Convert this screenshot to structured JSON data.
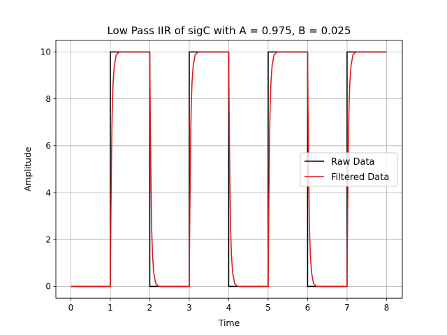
{
  "chart_data": {
    "type": "line",
    "title": "Low Pass IIR of sigC with A = 0.975, B = 0.025",
    "xlabel": "Time",
    "ylabel": "Amplitude",
    "xlim": [
      -0.38,
      8.4
    ],
    "ylim": [
      -0.5,
      10.5
    ],
    "xticks": [
      "0",
      "1",
      "2",
      "3",
      "4",
      "5",
      "6",
      "7",
      "8"
    ],
    "yticks": [
      "0",
      "2",
      "4",
      "6",
      "8",
      "10"
    ],
    "grid": true,
    "legend_position": "center-right",
    "filter_coefficients": {
      "A": 0.975,
      "B": 0.025
    },
    "series": [
      {
        "name": "Raw Data",
        "color": "#000000",
        "points": [
          [
            0,
            0
          ],
          [
            1,
            0
          ],
          [
            1,
            10
          ],
          [
            2,
            10
          ],
          [
            2,
            0
          ],
          [
            3,
            0
          ],
          [
            3,
            10
          ],
          [
            4,
            10
          ],
          [
            4,
            0
          ],
          [
            5,
            0
          ],
          [
            5,
            10
          ],
          [
            6,
            10
          ],
          [
            6,
            0
          ],
          [
            7,
            0
          ],
          [
            7,
            10
          ],
          [
            8,
            10
          ]
        ]
      },
      {
        "name": "Filtered Data",
        "color": "#e0191b",
        "points": [
          [
            0,
            0
          ],
          [
            1,
            0
          ],
          [
            1.0,
            0.25
          ],
          [
            1.01,
            2.21
          ],
          [
            1.02,
            3.93
          ],
          [
            1.03,
            5.43
          ],
          [
            1.04,
            6.74
          ],
          [
            1.05,
            7.67
          ],
          [
            1.07,
            8.68
          ],
          [
            1.1,
            9.41
          ],
          [
            1.15,
            9.88
          ],
          [
            1.22,
            9.99
          ],
          [
            1.3,
            10
          ],
          [
            2,
            10
          ],
          [
            2.0,
            9.75
          ],
          [
            2.01,
            7.79
          ],
          [
            2.02,
            6.07
          ],
          [
            2.03,
            4.57
          ],
          [
            2.04,
            3.26
          ],
          [
            2.05,
            2.33
          ],
          [
            2.07,
            1.32
          ],
          [
            2.1,
            0.59
          ],
          [
            2.15,
            0.12
          ],
          [
            2.22,
            0.01
          ],
          [
            2.3,
            0
          ],
          [
            3,
            0
          ],
          [
            3.0,
            0.25
          ],
          [
            3.01,
            2.21
          ],
          [
            3.02,
            3.93
          ],
          [
            3.03,
            5.43
          ],
          [
            3.04,
            6.74
          ],
          [
            3.05,
            7.67
          ],
          [
            3.07,
            8.68
          ],
          [
            3.1,
            9.41
          ],
          [
            3.15,
            9.88
          ],
          [
            3.22,
            9.99
          ],
          [
            3.3,
            10
          ],
          [
            4,
            10
          ],
          [
            4.0,
            9.75
          ],
          [
            4.01,
            7.79
          ],
          [
            4.02,
            6.07
          ],
          [
            4.03,
            4.57
          ],
          [
            4.04,
            3.26
          ],
          [
            4.05,
            2.33
          ],
          [
            4.07,
            1.32
          ],
          [
            4.1,
            0.59
          ],
          [
            4.15,
            0.12
          ],
          [
            4.22,
            0.01
          ],
          [
            4.3,
            0
          ],
          [
            5,
            0
          ],
          [
            5.0,
            0.25
          ],
          [
            5.01,
            2.21
          ],
          [
            5.02,
            3.93
          ],
          [
            5.03,
            5.43
          ],
          [
            5.04,
            6.74
          ],
          [
            5.05,
            7.67
          ],
          [
            5.07,
            8.68
          ],
          [
            5.1,
            9.41
          ],
          [
            5.15,
            9.88
          ],
          [
            5.22,
            9.99
          ],
          [
            5.3,
            10
          ],
          [
            6,
            10
          ],
          [
            6.0,
            9.75
          ],
          [
            6.01,
            7.79
          ],
          [
            6.02,
            6.07
          ],
          [
            6.03,
            4.57
          ],
          [
            6.04,
            3.26
          ],
          [
            6.05,
            2.33
          ],
          [
            6.07,
            1.32
          ],
          [
            6.1,
            0.59
          ],
          [
            6.15,
            0.12
          ],
          [
            6.22,
            0.01
          ],
          [
            6.3,
            0
          ],
          [
            7,
            0
          ],
          [
            7.0,
            0.25
          ],
          [
            7.01,
            2.21
          ],
          [
            7.02,
            3.93
          ],
          [
            7.03,
            5.43
          ],
          [
            7.04,
            6.74
          ],
          [
            7.05,
            7.67
          ],
          [
            7.07,
            8.68
          ],
          [
            7.1,
            9.41
          ],
          [
            7.15,
            9.88
          ],
          [
            7.22,
            9.99
          ],
          [
            7.3,
            10
          ],
          [
            8,
            10
          ]
        ]
      }
    ]
  }
}
